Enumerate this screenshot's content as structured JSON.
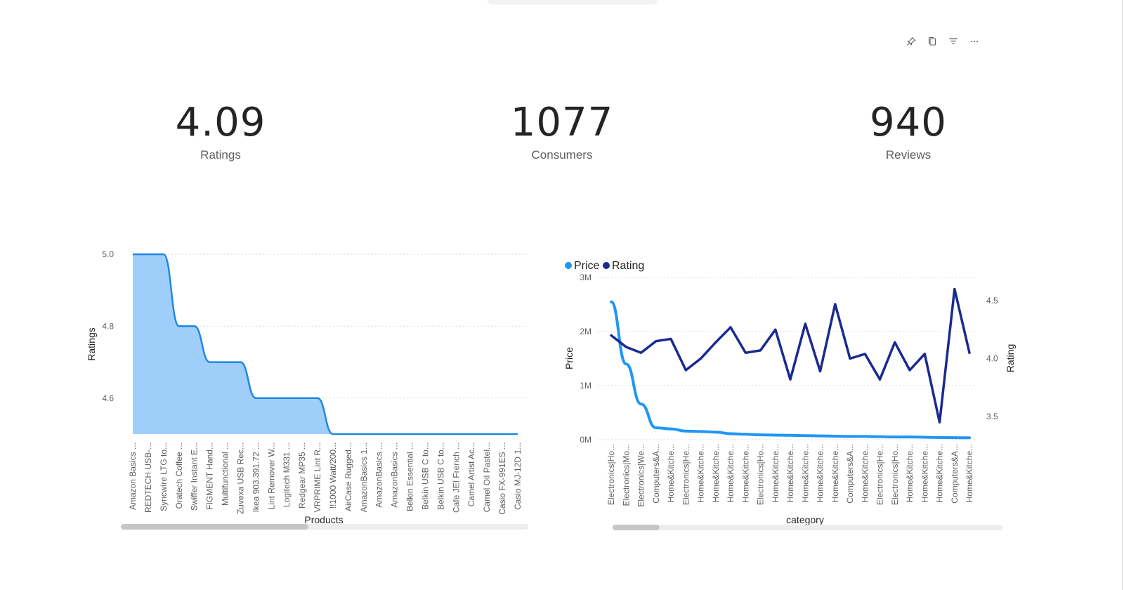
{
  "cards": [
    {
      "value": "4.09",
      "label": "Ratings"
    },
    {
      "value": "1077",
      "label": "Consumers"
    },
    {
      "value": "940",
      "label": "Reviews"
    }
  ],
  "toolbar": {
    "icons": [
      "pin-icon",
      "copy-icon",
      "filter-icon",
      "more-options-icon"
    ]
  },
  "colors": {
    "area_line": "#1f88e5",
    "area_fill": "#9fcefb",
    "price_line": "#2196f3",
    "rating_line": "#1a2a8f",
    "grid": "#d9d9d9",
    "axis_text": "#605e5c",
    "title_text": "#252423",
    "scrollbar_track": "#ededed",
    "scrollbar_thumb": "#c8c6c4"
  },
  "chart_data": [
    {
      "type": "area",
      "xlabel": "Products",
      "ylabel": "Ratings",
      "ylim": [
        4.5,
        5.0
      ],
      "yticks": [
        "5.0",
        "4.8",
        "4.6"
      ],
      "grid": true,
      "categories": [
        "Amazon Basics ...",
        "REDTECH USB-...",
        "Syncwire LTG to...",
        "Oratech Coffee ...",
        "Swiffer Instant E...",
        "FIGMENT Hand...",
        "Multifunctional ...",
        "Zuvexa USB Rec...",
        "Ikea 903.391.72 ...",
        "Lint Remover W...",
        "Logitech M331 ...",
        "Redgear MP35 ...",
        "VRPRIME Lint R...",
        "!!1000 Watt/200...",
        "AirCase Rugged...",
        "AmazonBasics 1...",
        "AmazonBasics ...",
        "AmazonBasics ...",
        "Belkin Essential ...",
        "Belkin USB C to...",
        "Belkin USB C to...",
        "Cafe JEI French ...",
        "Camel Artist Ac...",
        "Camel Oil Pastel...",
        "Casio FX-991ES ...",
        "Casio MJ-12D 1..."
      ],
      "values": [
        5.0,
        5.0,
        5.0,
        4.8,
        4.8,
        4.7,
        4.7,
        4.7,
        4.6,
        4.6,
        4.6,
        4.6,
        4.6,
        4.5,
        4.5,
        4.5,
        4.5,
        4.5,
        4.5,
        4.5,
        4.5,
        4.5,
        4.5,
        4.5,
        4.5,
        4.5
      ],
      "scrollbar": {
        "position": 0.0,
        "visible_fraction": 0.46
      }
    },
    {
      "type": "line",
      "xlabel": "category",
      "ylabel": "Price",
      "y2label": "Rating",
      "ylim": [
        0,
        3000000
      ],
      "yticks": [
        "3M",
        "2M",
        "1M",
        "0M"
      ],
      "y2lim": [
        3.3,
        4.7
      ],
      "y2ticks": [
        "4.5",
        "4.0",
        "3.5"
      ],
      "grid": true,
      "legend_position": "top-left",
      "categories": [
        "Electronics|Ho...",
        "Electronics|Mo...",
        "Electronics|We...",
        "Computers&A...",
        "Home&Kitche...",
        "Electronics|He...",
        "Home&Kitche...",
        "Home&Kitche...",
        "Home&Kitche...",
        "Home&Kitche...",
        "Electronics|Ho...",
        "Home&Kitche...",
        "Home&Kitche...",
        "Home&Kitche...",
        "Home&Kitche...",
        "Home&Kitche...",
        "Computers&A...",
        "Home&Kitche...",
        "Electronics|He...",
        "Electronics|Ho...",
        "Home&Kitche...",
        "Home&Kitche...",
        "Home&Kitche...",
        "Computers&A...",
        "Home&Kitche..."
      ],
      "series": [
        {
          "name": "Price",
          "axis": "left",
          "values": [
            2550000,
            1400000,
            660000,
            220000,
            200000,
            160000,
            150000,
            140000,
            110000,
            100000,
            90000,
            85000,
            80000,
            75000,
            70000,
            65000,
            60000,
            60000,
            55000,
            50000,
            50000,
            45000,
            40000,
            38000,
            35000
          ]
        },
        {
          "name": "Rating",
          "axis": "right",
          "values": [
            4.2,
            4.1,
            4.05,
            4.15,
            4.17,
            3.9,
            4.0,
            4.14,
            4.27,
            4.05,
            4.07,
            4.25,
            3.82,
            4.3,
            3.89,
            4.47,
            4.0,
            4.04,
            3.82,
            4.14,
            3.9,
            4.04,
            3.45,
            4.6,
            4.05
          ]
        }
      ],
      "scrollbar": {
        "position": 0.0,
        "visible_fraction": 0.12
      }
    }
  ]
}
